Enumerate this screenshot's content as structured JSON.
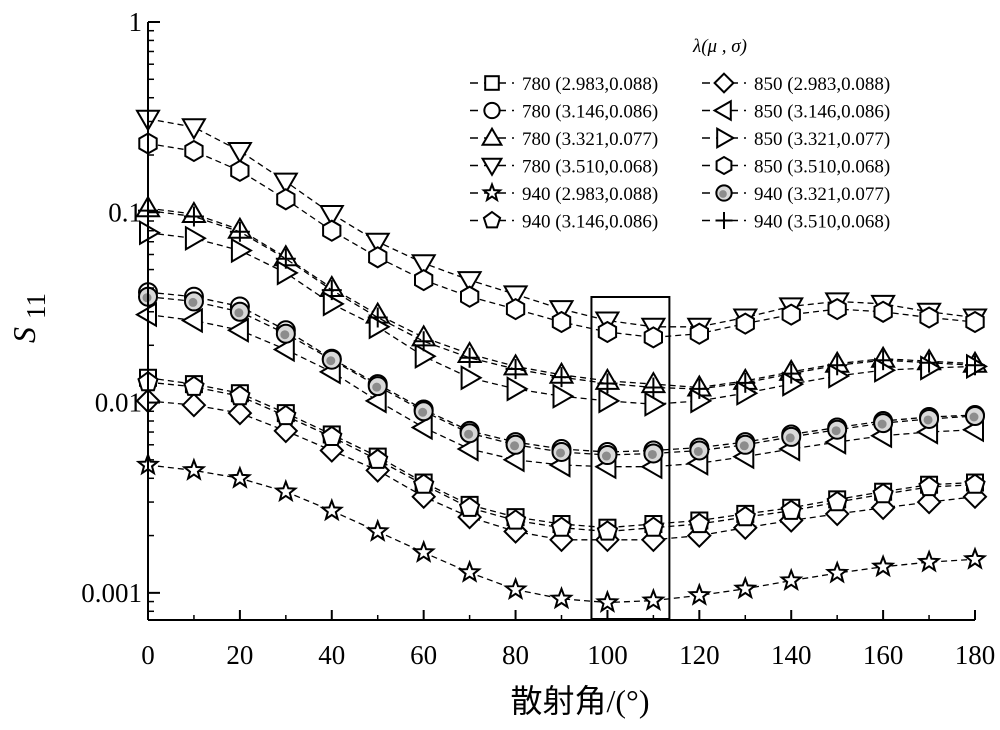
{
  "chart_data": {
    "type": "line",
    "xlabel": "散射角/(°)",
    "ylabel": "S",
    "ylabel_sub": "11",
    "yscale": "log",
    "xlim": [
      0,
      180
    ],
    "ylim": [
      0.00072,
      1
    ],
    "x_ticks": [
      "0",
      "20",
      "40",
      "60",
      "80",
      "100",
      "120",
      "140",
      "160",
      "180"
    ],
    "y_ticks": [
      "0.001",
      "0.01",
      "0.1",
      "1"
    ],
    "legend_title": "λ(μ , σ)",
    "legend_placement": "top-right",
    "grid": false,
    "highlight_box_x": [
      100,
      110
    ],
    "x": [
      0,
      10,
      20,
      30,
      40,
      50,
      60,
      70,
      80,
      90,
      100,
      110,
      120,
      130,
      140,
      150,
      160,
      170,
      180
    ],
    "series": [
      {
        "name": "780 (2.983,0.088)",
        "marker": "square",
        "values": [
          0.0135,
          0.0125,
          0.0112,
          0.0088,
          0.0068,
          0.0052,
          0.0038,
          0.0029,
          0.0025,
          0.0023,
          0.0022,
          0.0023,
          0.0024,
          0.0026,
          0.0028,
          0.0031,
          0.0034,
          0.0037,
          0.0038
        ]
      },
      {
        "name": "850 (2.983,0.088)",
        "marker": "diamond",
        "values": [
          0.0102,
          0.0097,
          0.0088,
          0.0071,
          0.0056,
          0.0044,
          0.0032,
          0.0025,
          0.0021,
          0.0019,
          0.0019,
          0.0019,
          0.002,
          0.0022,
          0.0024,
          0.0026,
          0.0028,
          0.003,
          0.0032
        ]
      },
      {
        "name": "780 (3.146,0.086)",
        "marker": "circle",
        "values": [
          0.038,
          0.036,
          0.032,
          0.024,
          0.017,
          0.0125,
          0.0092,
          0.0071,
          0.0062,
          0.0057,
          0.0055,
          0.0056,
          0.0058,
          0.0062,
          0.0068,
          0.0074,
          0.008,
          0.0084,
          0.0086
        ]
      },
      {
        "name": "850 (3.146,0.086)",
        "marker": "tri-left",
        "values": [
          0.029,
          0.027,
          0.024,
          0.019,
          0.0145,
          0.0102,
          0.0074,
          0.0057,
          0.005,
          0.0047,
          0.0046,
          0.0046,
          0.0048,
          0.0052,
          0.0057,
          0.0062,
          0.0067,
          0.007,
          0.0072
        ]
      },
      {
        "name": "780 (3.321,0.077)",
        "marker": "tri-up",
        "values": [
          0.105,
          0.098,
          0.081,
          0.058,
          0.04,
          0.029,
          0.022,
          0.018,
          0.0155,
          0.014,
          0.013,
          0.0125,
          0.012,
          0.013,
          0.0145,
          0.016,
          0.017,
          0.0165,
          0.016
        ]
      },
      {
        "name": "850 (3.321,0.077)",
        "marker": "tri-right",
        "values": [
          0.078,
          0.073,
          0.063,
          0.048,
          0.033,
          0.025,
          0.0175,
          0.0135,
          0.0118,
          0.0108,
          0.0102,
          0.0098,
          0.0102,
          0.0112,
          0.0125,
          0.0138,
          0.0148,
          0.0152,
          0.0155
        ]
      },
      {
        "name": "780 (3.510,0.068)",
        "marker": "tri-down",
        "values": [
          0.31,
          0.28,
          0.21,
          0.145,
          0.098,
          0.07,
          0.054,
          0.044,
          0.037,
          0.031,
          0.027,
          0.025,
          0.025,
          0.028,
          0.032,
          0.034,
          0.033,
          0.03,
          0.028
        ]
      },
      {
        "name": "850 (3.510,0.068)",
        "marker": "hexagon",
        "values": [
          0.23,
          0.21,
          0.165,
          0.117,
          0.08,
          0.058,
          0.044,
          0.036,
          0.031,
          0.0265,
          0.0235,
          0.022,
          0.023,
          0.026,
          0.029,
          0.031,
          0.03,
          0.028,
          0.0265
        ]
      },
      {
        "name": "940 (2.983,0.088)",
        "marker": "star",
        "values": [
          0.0047,
          0.0044,
          0.004,
          0.0034,
          0.0027,
          0.0021,
          0.00163,
          0.00128,
          0.00104,
          0.00093,
          0.00089,
          0.00091,
          0.00097,
          0.00105,
          0.00116,
          0.00127,
          0.00137,
          0.00145,
          0.0015
        ]
      },
      {
        "name": "940 (3.321,0.077)",
        "marker": "shaded-circle",
        "values": [
          0.036,
          0.034,
          0.03,
          0.023,
          0.0168,
          0.0122,
          0.009,
          0.0069,
          0.006,
          0.0055,
          0.0053,
          0.0054,
          0.0056,
          0.006,
          0.0066,
          0.0072,
          0.0078,
          0.0082,
          0.0085
        ]
      },
      {
        "name": "940 (3.146,0.086)",
        "marker": "pentagon",
        "values": [
          0.0128,
          0.0121,
          0.0108,
          0.0085,
          0.0066,
          0.005,
          0.0037,
          0.0028,
          0.0024,
          0.0022,
          0.0021,
          0.0022,
          0.0023,
          0.0025,
          0.0027,
          0.003,
          0.0033,
          0.0036,
          0.0037
        ]
      },
      {
        "name": "940 (3.510,0.068)",
        "marker": "plus",
        "values": [
          0.102,
          0.095,
          0.079,
          0.057,
          0.039,
          0.028,
          0.021,
          0.0172,
          0.015,
          0.0136,
          0.0126,
          0.012,
          0.0118,
          0.0127,
          0.0142,
          0.0157,
          0.0167,
          0.0162,
          0.0157
        ]
      }
    ]
  }
}
